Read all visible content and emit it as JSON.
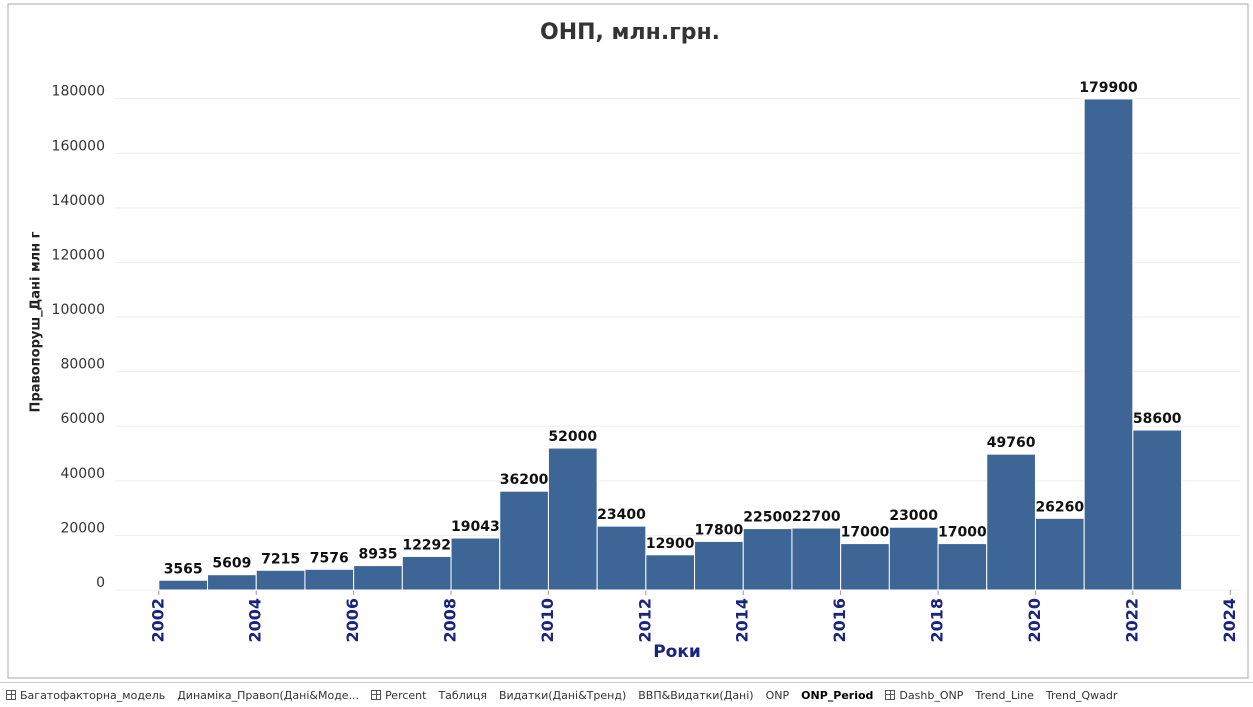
{
  "chart_data": {
    "type": "histogram",
    "title": "ОНП, млн.грн.",
    "x_label": "Роки",
    "y_label": "Правопоруш_Дані млн г",
    "bins": [
      2002,
      2003,
      2004,
      2005,
      2006,
      2007,
      2008,
      2009,
      2010,
      2011,
      2012,
      2013,
      2014,
      2015,
      2016,
      2017,
      2018,
      2019,
      2020,
      2021,
      2022,
      2023
    ],
    "values": [
      3565,
      5609,
      7215,
      7576,
      8935,
      12292,
      19043,
      36200,
      52000,
      23400,
      12900,
      17800,
      22500,
      22700,
      17000,
      23000,
      17000,
      49760,
      26260,
      179900,
      58600
    ],
    "color": "#3d6596",
    "xlim": [
      2001.1,
      2024.2
    ],
    "xticks": [
      2002,
      2004,
      2006,
      2008,
      2010,
      2012,
      2014,
      2016,
      2018,
      2020,
      2022,
      2024
    ],
    "ylim": [
      0,
      196000
    ],
    "yticks": [
      0,
      20000,
      40000,
      60000,
      80000,
      100000,
      120000,
      140000,
      160000,
      180000
    ],
    "grid": true
  },
  "tabs": [
    "Багатофакторна_модель",
    "Динаміка_Правоп(Дані&Моде...",
    "Percent",
    "Таблиця",
    "Видатки(Дані&Тренд)",
    "ВВП&Видатки(Дані)",
    "ONP",
    "ONP_Period",
    "Dashb_ONP",
    "Trend_Line",
    "Trend_Qwadr"
  ],
  "active_tab": 7
}
